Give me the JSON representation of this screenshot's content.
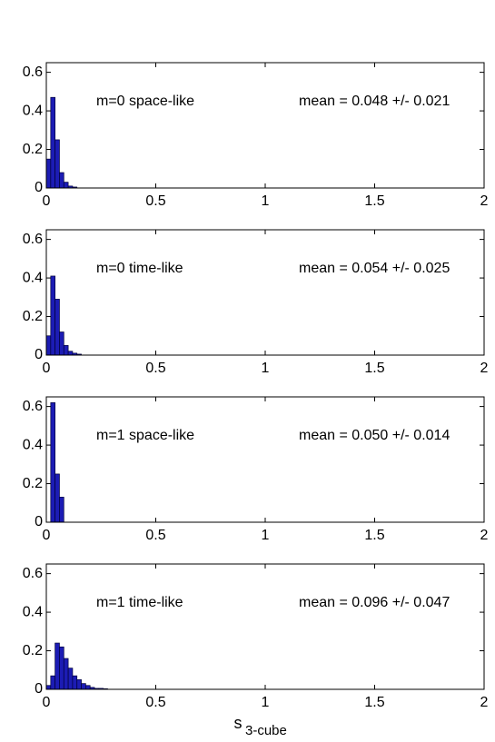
{
  "chart_data": [
    {
      "type": "histogram",
      "annotation": "m=0 space-like",
      "stat_text": "mean = 0.048 +/- 0.021",
      "bins": [
        0,
        0.02,
        0.04,
        0.06,
        0.08,
        0.1,
        0.12,
        0.14
      ],
      "values": [
        0.15,
        0.47,
        0.25,
        0.08,
        0.03,
        0.01,
        0.005
      ],
      "color": "#1c1cb4",
      "xlim": [
        0,
        2
      ],
      "xticks": [
        0,
        0.5,
        1,
        1.5,
        2
      ],
      "ylim": [
        0,
        0.65
      ],
      "yticks": [
        0,
        0.2,
        0.4,
        0.6
      ]
    },
    {
      "type": "histogram",
      "annotation": "m=0 time-like",
      "stat_text": "mean = 0.054 +/- 0.025",
      "bins": [
        0,
        0.02,
        0.04,
        0.06,
        0.08,
        0.1,
        0.12,
        0.14,
        0.16
      ],
      "values": [
        0.1,
        0.41,
        0.29,
        0.12,
        0.05,
        0.02,
        0.01,
        0.005
      ],
      "color": "#1c1cb4",
      "xlim": [
        0,
        2
      ],
      "xticks": [
        0,
        0.5,
        1,
        1.5,
        2
      ],
      "ylim": [
        0,
        0.65
      ],
      "yticks": [
        0,
        0.2,
        0.4,
        0.6
      ]
    },
    {
      "type": "histogram",
      "annotation": "m=1 space-like",
      "stat_text": "mean = 0.050 +/- 0.014",
      "bins": [
        0.02,
        0.04,
        0.06,
        0.08
      ],
      "values": [
        0.62,
        0.25,
        0.13
      ],
      "color": "#1c1cb4",
      "xlim": [
        0,
        2
      ],
      "xticks": [
        0,
        0.5,
        1,
        1.5,
        2
      ],
      "ylim": [
        0,
        0.65
      ],
      "yticks": [
        0,
        0.2,
        0.4,
        0.6
      ]
    },
    {
      "type": "histogram",
      "annotation": "m=1 time-like",
      "stat_text": "mean = 0.096 +/- 0.047",
      "bins": [
        0,
        0.02,
        0.04,
        0.06,
        0.08,
        0.1,
        0.12,
        0.14,
        0.16,
        0.18,
        0.2,
        0.22,
        0.24,
        0.26,
        0.28
      ],
      "values": [
        0.02,
        0.07,
        0.24,
        0.22,
        0.16,
        0.11,
        0.07,
        0.05,
        0.03,
        0.02,
        0.01,
        0.005,
        0.005,
        0.003
      ],
      "color": "#1c1cb4",
      "xlim": [
        0,
        2
      ],
      "xticks": [
        0,
        0.5,
        1,
        1.5,
        2
      ],
      "ylim": [
        0,
        0.65
      ],
      "yticks": [
        0,
        0.2,
        0.4,
        0.6
      ],
      "xlabel": "s",
      "xlabel_subscript": "3-cube"
    }
  ]
}
